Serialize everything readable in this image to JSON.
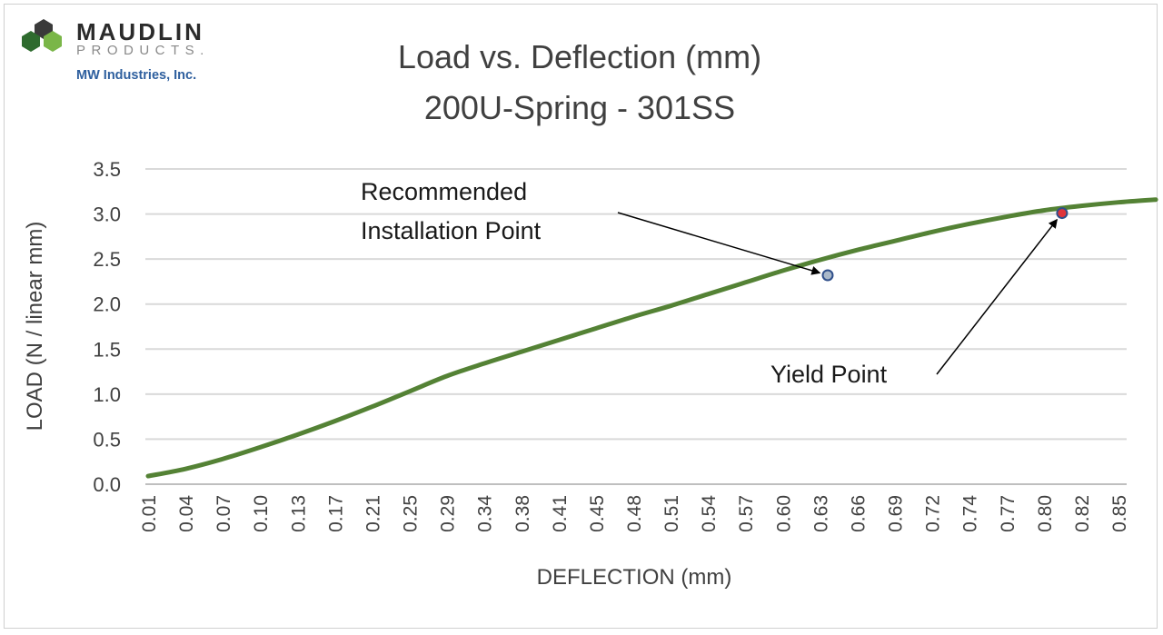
{
  "logo": {
    "name": "MAUDLIN",
    "sub": "PRODUCTS.",
    "company": "MW Industries, Inc.",
    "colors": [
      "#2e6b2e",
      "#7ab648",
      "#3a3a3a"
    ]
  },
  "chart_data": {
    "type": "line",
    "title": "Load vs. Deflection (mm)",
    "subtitle": "200U-Spring - 301SS",
    "xlabel": "DEFLECTION (mm)",
    "ylabel": "LOAD (N / linear mm)",
    "ylim": [
      0,
      3.5
    ],
    "yticks": [
      "0.0",
      "0.5",
      "1.0",
      "1.5",
      "2.0",
      "2.5",
      "3.0",
      "3.5"
    ],
    "xticks": [
      "0.01",
      "0.04",
      "0.07",
      "0.10",
      "0.13",
      "0.17",
      "0.21",
      "0.25",
      "0.29",
      "0.34",
      "0.38",
      "0.41",
      "0.45",
      "0.48",
      "0.51",
      "0.54",
      "0.57",
      "0.60",
      "0.63",
      "0.66",
      "0.69",
      "0.72",
      "0.74",
      "0.77",
      "0.80",
      "0.82",
      "0.85"
    ],
    "grid": true,
    "line_color": "#548235",
    "series": [
      {
        "x": [
          0.01,
          0.04,
          0.07,
          0.1,
          0.13,
          0.17,
          0.21,
          0.25,
          0.29,
          0.34,
          0.38,
          0.41,
          0.45,
          0.48,
          0.51,
          0.54,
          0.57,
          0.6,
          0.63,
          0.66,
          0.69,
          0.72,
          0.74,
          0.77,
          0.8,
          0.82,
          0.85,
          0.87
        ],
        "values": [
          0.09,
          0.17,
          0.28,
          0.41,
          0.55,
          0.7,
          0.86,
          1.03,
          1.2,
          1.34,
          1.47,
          1.6,
          1.73,
          1.86,
          1.98,
          2.11,
          2.24,
          2.37,
          2.49,
          2.6,
          2.7,
          2.8,
          2.89,
          2.97,
          3.04,
          3.09,
          3.13,
          3.16
        ]
      }
    ],
    "annotations": [
      {
        "text_lines": [
          "Recommended",
          "Installation Point"
        ],
        "x": 0.59,
        "y": 2.32,
        "marker_color": "#a9b8c9"
      },
      {
        "text_lines": [
          "Yield Point"
        ],
        "x": 0.79,
        "y": 3.01,
        "marker_color": "#e0343b"
      }
    ]
  }
}
